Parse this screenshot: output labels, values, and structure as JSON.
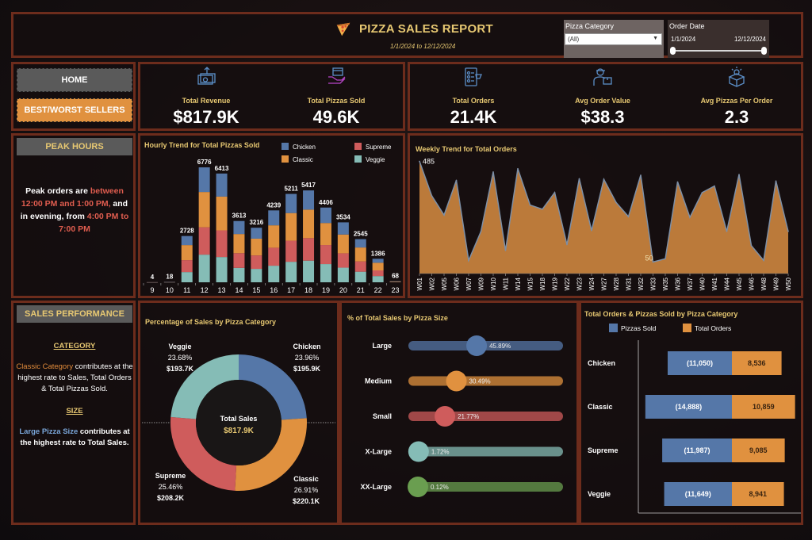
{
  "header": {
    "title": "PIZZA SALES REPORT",
    "date_range": "1/1/2024 to 12/12/2024",
    "filters": {
      "category_label": "Pizza Category",
      "category_value": "(All)",
      "date_label": "Order Date",
      "date_start": "1/1/2024",
      "date_end": "12/12/2024"
    }
  },
  "nav": {
    "home": "HOME",
    "best_worst": "BEST/WORST SELLERS"
  },
  "kpis": [
    {
      "label": "Total Revenue",
      "value": "$817.9K",
      "icon": "money-icon"
    },
    {
      "label": "Total Pizzas Sold",
      "value": "49.6K",
      "icon": "pizza-box-hand-icon"
    },
    {
      "label": "Total Orders",
      "value": "21.4K",
      "icon": "order-checklist-icon"
    },
    {
      "label": "Avg Order Value",
      "value": "$38.3",
      "icon": "delivery-person-icon"
    },
    {
      "label": "Avg Pizzas Per Order",
      "value": "2.3",
      "icon": "box-idea-icon"
    }
  ],
  "peak": {
    "heading": "PEAK HOURS",
    "t1": "Peak orders are ",
    "t2": "between 12:00 PM and 1:00 PM,",
    "t3": " and in evening, from ",
    "t4": "4:00 PM to 7:00 PM"
  },
  "performance": {
    "heading": "SALES PERFORMANCE",
    "cat_heading": "CATEGORY",
    "cat_hl": "Classic Category",
    "cat_text": " contributes at the highest rate to  Sales, Total Orders & Total Pizzas Sold.",
    "size_heading": "SIZE",
    "size_hl": "Large Pizza Size",
    "size_text": " contributes at the highest rate to Total Sales."
  },
  "colors": {
    "chicken": "#5577a8",
    "classic": "#e0913f",
    "supreme": "#cf5c5c",
    "veggie": "#85bcb6",
    "xxlarge": "#6a9e50",
    "gold": "#e7c872",
    "area": "#bb7a3a",
    "border": "#6d2c1c"
  },
  "chart_data": [
    {
      "id": "hourly",
      "type": "bar",
      "stacked": true,
      "title": "Hourly Trend for Total Pizzas Sold",
      "categories": [
        "9",
        "10",
        "11",
        "12",
        "13",
        "14",
        "15",
        "16",
        "17",
        "18",
        "19",
        "20",
        "21",
        "22",
        "23"
      ],
      "totals": [
        4,
        18,
        2728,
        6776,
        6413,
        3613,
        3216,
        4239,
        5211,
        5417,
        4406,
        3534,
        2545,
        1386,
        68
      ],
      "series": [
        {
          "name": "Chicken",
          "values": [
            1,
            4,
            536,
            1452,
            1360,
            768,
            643,
            880,
            1129,
            1132,
            910,
            717,
            493,
            234,
            12
          ]
        },
        {
          "name": "Classic",
          "values": [
            1,
            5,
            887,
            2081,
            1992,
            1128,
            990,
            1321,
            1630,
            1682,
            1301,
            1107,
            821,
            451,
            24
          ]
        },
        {
          "name": "Supreme",
          "values": [
            1,
            5,
            703,
            1613,
            1571,
            867,
            792,
            1060,
            1242,
            1326,
            1122,
            847,
            607,
            334,
            16
          ]
        },
        {
          "name": "Veggie",
          "values": [
            1,
            4,
            602,
            1630,
            1490,
            850,
            791,
            978,
            1210,
            1277,
            1073,
            863,
            624,
            367,
            16
          ]
        }
      ],
      "legend": [
        "Chicken",
        "Supreme",
        "Classic",
        "Veggie"
      ],
      "legend_position": "top-right",
      "ylim": [
        0,
        7000
      ]
    },
    {
      "id": "weekly",
      "type": "area",
      "title": "Weekly Trend for Total Orders",
      "x": [
        "W01",
        "W02",
        "W05",
        "W06",
        "W07",
        "W09",
        "W10",
        "W11",
        "W14",
        "W15",
        "W18",
        "W19",
        "W22",
        "W23",
        "W24",
        "W27",
        "W28",
        "W31",
        "W32",
        "W33",
        "W35",
        "W36",
        "W37",
        "W40",
        "W41",
        "W44",
        "W45",
        "W46",
        "W48",
        "W49",
        "W50"
      ],
      "values": [
        485,
        336,
        253,
        403,
        57,
        182,
        439,
        100,
        453,
        296,
        278,
        350,
        125,
        410,
        186,
        407,
        307,
        246,
        425,
        50,
        64,
        396,
        243,
        350,
        378,
        182,
        428,
        121,
        57,
        400,
        182
      ],
      "annotations": [
        {
          "x": "W01",
          "label": "485"
        },
        {
          "x": "W33",
          "label": "50"
        }
      ],
      "ylim": [
        0,
        500
      ]
    },
    {
      "id": "category_pie",
      "type": "pie",
      "donut": true,
      "title": "Percentage of Sales by Pizza Category",
      "center_label": "Total Sales",
      "center_value": "$817.9K",
      "slices": [
        {
          "name": "Chicken",
          "pct": 23.96,
          "pct_label": "23.96%",
          "value_label": "$195.9K"
        },
        {
          "name": "Classic",
          "pct": 26.91,
          "pct_label": "26.91%",
          "value_label": "$220.1K"
        },
        {
          "name": "Supreme",
          "pct": 25.46,
          "pct_label": "25.46%",
          "value_label": "$208.2K"
        },
        {
          "name": "Veggie",
          "pct": 23.68,
          "pct_label": "23.68%",
          "value_label": "$193.7K"
        }
      ]
    },
    {
      "id": "size",
      "type": "bar",
      "title": "% of Total Sales by Pizza Size",
      "categories": [
        "Large",
        "Medium",
        "Small",
        "X-Large",
        "XX-Large"
      ],
      "values": [
        45.89,
        30.49,
        21.77,
        1.72,
        0.12
      ],
      "labels": [
        "45.89%",
        "30.49%",
        "21.77%",
        "1.72%",
        "0.12%"
      ],
      "colors": [
        "#5577a8",
        "#e0913f",
        "#cf5c5c",
        "#85bcb6",
        "#6a9e50"
      ],
      "xlim": [
        0,
        100
      ]
    },
    {
      "id": "category_bars",
      "type": "bar",
      "orientation": "horizontal",
      "diverging": true,
      "title": "Total Orders & Pizzas Sold by Pizza Category",
      "categories": [
        "Chicken",
        "Classic",
        "Supreme",
        "Veggie"
      ],
      "series": [
        {
          "name": "Pizzas Sold",
          "values": [
            11050,
            14888,
            11987,
            11649
          ],
          "labels": [
            "(11,050)",
            "(14,888)",
            "(11,987)",
            "(11,649)"
          ]
        },
        {
          "name": "Total Orders",
          "values": [
            8536,
            10859,
            9085,
            8941
          ],
          "labels": [
            "8,536",
            "10,859",
            "9,085",
            "8,941"
          ]
        }
      ],
      "legend_position": "top"
    }
  ]
}
